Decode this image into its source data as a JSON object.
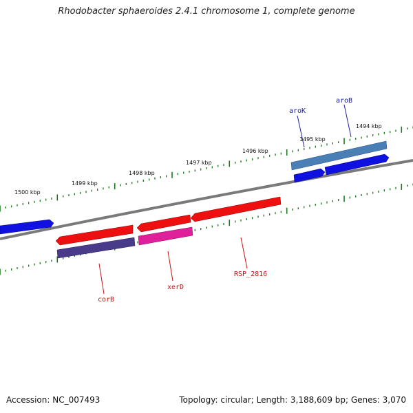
{
  "title": "Rhodobacter sphaeroides 2.4.1 chromosome 1, complete genome",
  "footer": {
    "accession": "Accession: NC_007493",
    "summary": "Topology: circular; Length: 3,188,609 bp; Genes: 3,070"
  },
  "colors": {
    "backbone": "#7a7a7a",
    "tick": "#1a7a1a",
    "forward_label": "#2020a0",
    "reverse_label": "#cc1010"
  },
  "scale_labels": [
    "1494 kbp",
    "1495 kbp",
    "1496 kbp",
    "1497 kbp",
    "1498 kbp",
    "1499 kbp",
    "1500 kbp"
  ],
  "forward_genes": [
    {
      "label": "",
      "color": "#1010e0"
    },
    {
      "label": "aroK",
      "color": "#1010e0"
    },
    {
      "label": "aroB",
      "color": "#1010e0"
    },
    {
      "label": "",
      "color": "#4a7fb5"
    }
  ],
  "reverse_genes": [
    {
      "label": "corB",
      "color": "#ee1010"
    },
    {
      "label": "xerD",
      "color": "#ee1010"
    },
    {
      "label": "RSP_2816",
      "color": "#ee1010"
    },
    {
      "label": "",
      "color": "#4a3a8a"
    },
    {
      "label": "",
      "color": "#e0209a"
    }
  ]
}
